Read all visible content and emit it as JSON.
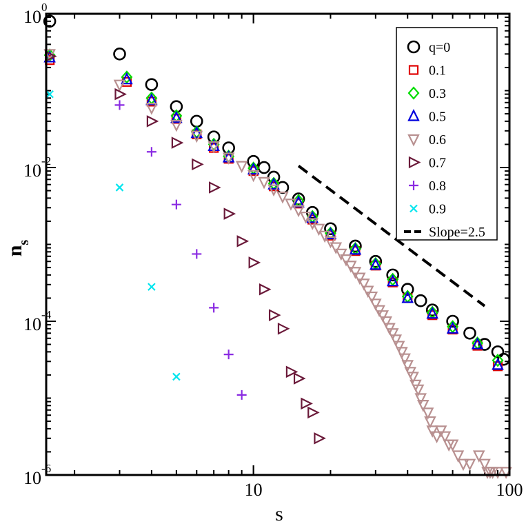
{
  "chart_data": {
    "type": "scatter",
    "title": "",
    "xlabel": "s",
    "ylabel": "n",
    "ylabel_subscript": "s",
    "x_scale": "log",
    "y_scale": "log",
    "xlim": [
      1.55,
      100
    ],
    "ylim": [
      1e-06,
      1
    ],
    "x_tick_labels": [
      {
        "value": 10,
        "text": "10"
      },
      {
        "value": 100,
        "text": "100"
      }
    ],
    "y_tick_labels": [
      {
        "value": 1,
        "base": "10",
        "exp": "0"
      },
      {
        "value": 0.01,
        "base": "10",
        "exp": "-2"
      },
      {
        "value": 0.0001,
        "base": "10",
        "exp": "-4"
      },
      {
        "value": 1e-06,
        "base": "10",
        "exp": "-6"
      }
    ],
    "legend_position": "top-right",
    "series": [
      {
        "name": "q=0",
        "marker": "circle",
        "color": "#000000",
        "points": [
          [
            1.6,
            0.8
          ],
          [
            3,
            0.3
          ],
          [
            4,
            0.12
          ],
          [
            5,
            0.062
          ],
          [
            6,
            0.04
          ],
          [
            7,
            0.025
          ],
          [
            8,
            0.018
          ],
          [
            10,
            0.012
          ],
          [
            11,
            0.01
          ],
          [
            12,
            0.0075
          ],
          [
            13,
            0.0055
          ],
          [
            15,
            0.0039
          ],
          [
            17,
            0.0026
          ],
          [
            20,
            0.0016
          ],
          [
            25,
            0.00095
          ],
          [
            30,
            0.0006
          ],
          [
            35,
            0.0004
          ],
          [
            40,
            0.00026
          ],
          [
            45,
            0.000185
          ],
          [
            50,
            0.00014
          ],
          [
            60,
            0.0001
          ],
          [
            70,
            7e-05
          ],
          [
            80,
            5e-05
          ],
          [
            90,
            4e-05
          ],
          [
            95,
            3.2e-05
          ]
        ]
      },
      {
        "name": "0.1",
        "marker": "square",
        "color": "#e00000",
        "points": [
          [
            1.6,
            0.25
          ],
          [
            3.2,
            0.13
          ],
          [
            4,
            0.072
          ],
          [
            5,
            0.043
          ],
          [
            6,
            0.027
          ],
          [
            7,
            0.018
          ],
          [
            8,
            0.013
          ],
          [
            10,
            0.009
          ],
          [
            12,
            0.0057
          ],
          [
            15,
            0.0034
          ],
          [
            17,
            0.0021
          ],
          [
            20,
            0.0013
          ],
          [
            25,
            0.00082
          ],
          [
            30,
            0.00053
          ],
          [
            35,
            0.00032
          ],
          [
            40,
            0.0002
          ],
          [
            50,
            0.00012
          ],
          [
            60,
            7.8e-05
          ],
          [
            75,
            4.8e-05
          ],
          [
            90,
            2.6e-05
          ]
        ]
      },
      {
        "name": "0.3",
        "marker": "diamond",
        "color": "#00dd00",
        "points": [
          [
            1.6,
            0.29
          ],
          [
            3.2,
            0.15
          ],
          [
            4,
            0.08
          ],
          [
            5,
            0.047
          ],
          [
            6,
            0.029
          ],
          [
            7,
            0.02
          ],
          [
            8,
            0.014
          ],
          [
            10,
            0.0098
          ],
          [
            12,
            0.0062
          ],
          [
            15,
            0.0037
          ],
          [
            17,
            0.0023
          ],
          [
            20,
            0.0014
          ],
          [
            25,
            0.00088
          ],
          [
            30,
            0.00056
          ],
          [
            35,
            0.00035
          ],
          [
            40,
            0.00021
          ],
          [
            50,
            0.00013
          ],
          [
            60,
            8.5e-05
          ],
          [
            75,
            5.2e-05
          ],
          [
            90,
            3.1e-05
          ]
        ]
      },
      {
        "name": "0.5",
        "marker": "triangle-up",
        "color": "#0000dd",
        "points": [
          [
            1.6,
            0.27
          ],
          [
            3.2,
            0.14
          ],
          [
            4,
            0.075
          ],
          [
            5,
            0.044
          ],
          [
            6,
            0.028
          ],
          [
            7,
            0.019
          ],
          [
            8,
            0.0135
          ],
          [
            10,
            0.0094
          ],
          [
            12,
            0.006
          ],
          [
            15,
            0.0035
          ],
          [
            17,
            0.0022
          ],
          [
            20,
            0.00135
          ],
          [
            25,
            0.00085
          ],
          [
            30,
            0.00054
          ],
          [
            35,
            0.00033
          ],
          [
            40,
            0.0002
          ],
          [
            50,
            0.000125
          ],
          [
            60,
            8e-05
          ],
          [
            75,
            5e-05
          ],
          [
            90,
            2.7e-05
          ]
        ]
      },
      {
        "name": "0.6",
        "marker": "triangle-down",
        "color": "#b89090",
        "points": [
          [
            1.6,
            0.3
          ],
          [
            3,
            0.12
          ],
          [
            4,
            0.06
          ],
          [
            5,
            0.036
          ],
          [
            6,
            0.026
          ],
          [
            7,
            0.019
          ],
          [
            8,
            0.0135
          ],
          [
            9,
            0.0105
          ],
          [
            10,
            0.008
          ],
          [
            11,
            0.0065
          ],
          [
            12,
            0.0052
          ],
          [
            13,
            0.0042
          ],
          [
            14,
            0.0034
          ],
          [
            15,
            0.0028
          ],
          [
            16,
            0.0023
          ],
          [
            17,
            0.0019
          ],
          [
            18,
            0.0016
          ],
          [
            19,
            0.0013
          ],
          [
            20,
            0.0011
          ],
          [
            21,
            0.00092
          ],
          [
            22,
            0.00076
          ],
          [
            23,
            0.00064
          ],
          [
            24,
            0.00053
          ],
          [
            25,
            0.00044
          ],
          [
            26,
            0.00037
          ],
          [
            27,
            0.00031
          ],
          [
            28,
            0.00025
          ],
          [
            29,
            0.00021
          ],
          [
            30,
            0.00017
          ],
          [
            31,
            0.00014
          ],
          [
            32,
            0.00012
          ],
          [
            33,
            0.0001
          ],
          [
            34,
            8.2e-05
          ],
          [
            35,
            7e-05
          ],
          [
            36,
            5.8e-05
          ],
          [
            37,
            4.8e-05
          ],
          [
            38,
            4e-05
          ],
          [
            39,
            3.3e-05
          ],
          [
            40,
            2.7e-05
          ],
          [
            41,
            2.2e-05
          ],
          [
            42,
            1.9e-05
          ],
          [
            43,
            1.5e-05
          ],
          [
            44,
            1.3e-05
          ],
          [
            45,
            1e-05
          ],
          [
            46,
            8.2e-06
          ],
          [
            48,
            6.5e-06
          ],
          [
            49,
            5e-06
          ],
          [
            50,
            3.8e-06
          ],
          [
            52,
            3.2e-06
          ],
          [
            54,
            3.8e-06
          ],
          [
            56,
            3.2e-06
          ],
          [
            58,
            2.5e-06
          ],
          [
            60,
            2.5e-06
          ],
          [
            63,
            1.8e-06
          ],
          [
            66,
            1.4e-06
          ],
          [
            70,
            1.4e-06
          ],
          [
            76,
            1.8e-06
          ],
          [
            80,
            1.4e-06
          ],
          [
            82,
            1.1e-06
          ],
          [
            84,
            1.1e-06
          ],
          [
            86,
            1.1e-06
          ],
          [
            90,
            1.1e-06
          ],
          [
            97,
            1.1e-06
          ]
        ]
      },
      {
        "name": "0.7",
        "marker": "triangle-right",
        "color": "#6b1a3a",
        "points": [
          [
            1.6,
            0.28
          ],
          [
            3,
            0.09
          ],
          [
            4,
            0.04
          ],
          [
            5,
            0.021
          ],
          [
            6,
            0.011
          ],
          [
            7,
            0.0055
          ],
          [
            8,
            0.0025
          ],
          [
            9,
            0.0011
          ],
          [
            10,
            0.00058
          ],
          [
            11,
            0.00026
          ],
          [
            12,
            0.00012
          ],
          [
            13,
            8e-05
          ],
          [
            14,
            2.2e-05
          ],
          [
            15,
            1.8e-05
          ],
          [
            16,
            8.5e-06
          ],
          [
            17,
            6.5e-06
          ],
          [
            18,
            3e-06
          ]
        ]
      },
      {
        "name": "0.8",
        "marker": "plus",
        "color": "#8a2be2",
        "points": [
          [
            3,
            0.065
          ],
          [
            4,
            0.016
          ],
          [
            5,
            0.0033
          ],
          [
            6,
            0.00075
          ],
          [
            7,
            0.00015
          ],
          [
            8,
            3.7e-05
          ],
          [
            9,
            1.1e-05
          ]
        ]
      },
      {
        "name": "0.9",
        "marker": "x",
        "color": "#00e5ee",
        "points": [
          [
            1.6,
            0.09
          ],
          [
            3,
            0.0055
          ],
          [
            4,
            0.00028
          ],
          [
            5,
            1.9e-05
          ]
        ]
      },
      {
        "name": "Slope=2.5",
        "marker": "dashed-line",
        "color": "#000000",
        "points": [
          [
            15,
            0.0105
          ],
          [
            80,
            0.000158
          ]
        ]
      }
    ]
  }
}
